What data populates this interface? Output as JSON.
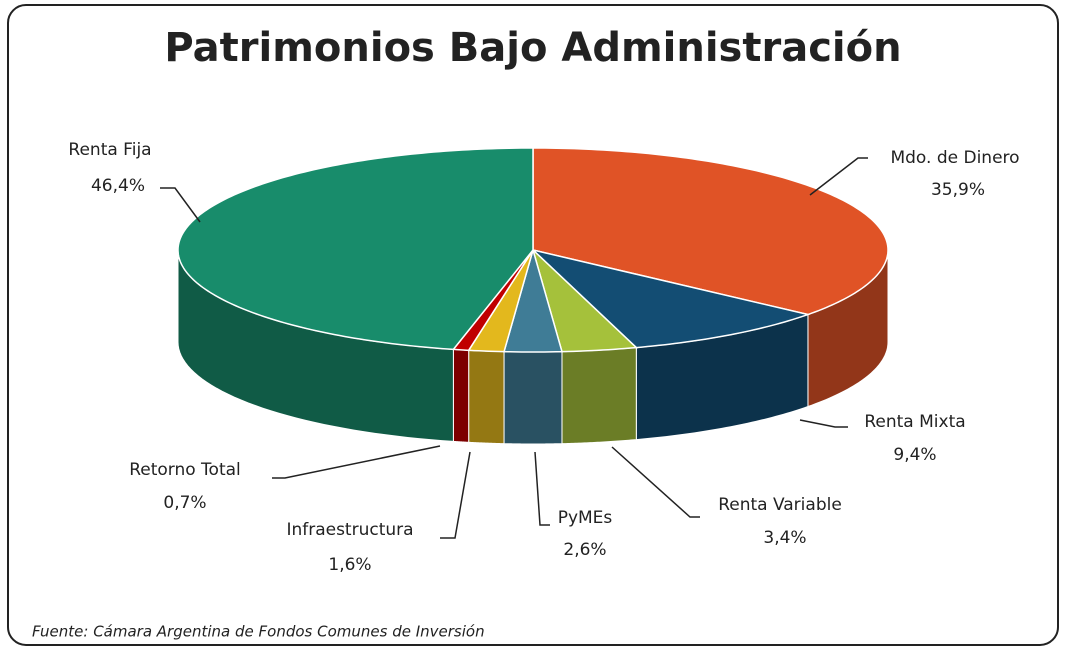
{
  "chart_data": {
    "type": "pie",
    "title": "Patrimonios Bajo Administración",
    "categories": [
      "Mdo. de Dinero",
      "Renta Mixta",
      "Renta Variable",
      "PyMEs",
      "Infraestructura",
      "Retorno Total",
      "Renta Fija"
    ],
    "values": [
      35.9,
      9.4,
      3.4,
      2.6,
      1.6,
      0.7,
      46.4
    ],
    "value_labels": [
      "35,9%",
      "9,4%",
      "3,4%",
      "2,6%",
      "1,6%",
      "0,7%",
      "46,4%"
    ],
    "colors": [
      "#e05326",
      "#134d73",
      "#a5c13b",
      "#3f7c96",
      "#e3b81d",
      "#c00000",
      "#188c6b"
    ],
    "source": "Fuente:  Cámara Argentina de Fondos Comunes de Inversión"
  }
}
